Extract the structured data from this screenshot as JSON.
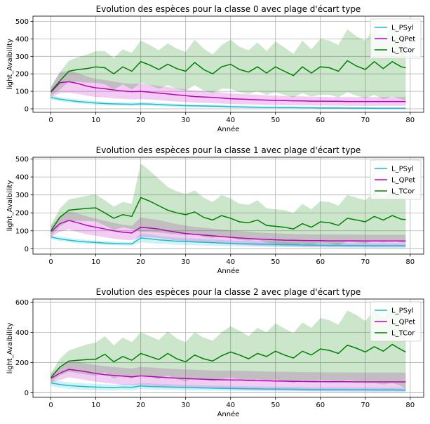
{
  "chart_data": [
    {
      "type": "line",
      "title": "Evolution des espèces pour la classe 0 avec plage d'écart type",
      "xlabel": "Année",
      "ylabel": "light_Avaibility",
      "xlim": [
        -4,
        83
      ],
      "ylim": [
        -20,
        530
      ],
      "xticks": [
        0,
        10,
        20,
        30,
        40,
        50,
        60,
        70,
        80
      ],
      "yticks": [
        0,
        100,
        200,
        300,
        400,
        500
      ],
      "grid": true,
      "legend": "top-right",
      "x": [
        0,
        2,
        4,
        6,
        8,
        10,
        12,
        14,
        16,
        18,
        20,
        22,
        24,
        26,
        28,
        30,
        32,
        34,
        36,
        38,
        40,
        42,
        44,
        46,
        48,
        50,
        52,
        54,
        56,
        58,
        60,
        62,
        64,
        66,
        68,
        70,
        72,
        74,
        76,
        78,
        79
      ],
      "series": [
        {
          "name": "L_PSyl",
          "color": "#17becf",
          "values": [
            65,
            55,
            48,
            42,
            38,
            33,
            30,
            28,
            27,
            26,
            28,
            27,
            24,
            22,
            20,
            18,
            17,
            16,
            15,
            14,
            12,
            11,
            10,
            9,
            8,
            8,
            7,
            7,
            6,
            6,
            5,
            5,
            5,
            4,
            4,
            4,
            3,
            3,
            3,
            3,
            3
          ],
          "std": [
            12,
            12,
            12,
            12,
            11,
            11,
            11,
            10,
            10,
            10,
            10,
            10,
            9,
            9,
            9,
            8,
            8,
            8,
            8,
            7,
            7,
            7,
            7,
            6,
            6,
            6,
            6,
            6,
            5,
            5,
            5,
            5,
            5,
            5,
            5,
            5,
            5,
            5,
            5,
            5,
            5
          ]
        },
        {
          "name": "L_QPet",
          "color": "#bf00bf",
          "values": [
            95,
            150,
            155,
            145,
            130,
            120,
            115,
            108,
            102,
            98,
            100,
            95,
            90,
            85,
            80,
            75,
            70,
            68,
            65,
            62,
            58,
            56,
            54,
            52,
            50,
            48,
            47,
            46,
            45,
            44,
            44,
            43,
            43,
            42,
            42,
            42,
            42,
            42,
            42,
            42,
            42
          ],
          "std": [
            30,
            60,
            62,
            60,
            55,
            52,
            50,
            48,
            45,
            45,
            45,
            42,
            40,
            40,
            38,
            36,
            35,
            34,
            33,
            32,
            30,
            30,
            29,
            28,
            28,
            27,
            27,
            26,
            26,
            25,
            25,
            25,
            25,
            25,
            25,
            25,
            25,
            25,
            25,
            25,
            25
          ]
        },
        {
          "name": "L_TCor",
          "color": "#008000",
          "values": [
            100,
            160,
            215,
            225,
            230,
            240,
            235,
            200,
            240,
            215,
            270,
            250,
            225,
            255,
            230,
            215,
            265,
            225,
            200,
            240,
            255,
            225,
            210,
            240,
            205,
            240,
            215,
            190,
            240,
            205,
            240,
            235,
            215,
            275,
            245,
            225,
            270,
            230,
            270,
            240,
            235
          ],
          "std": [
            25,
            50,
            60,
            70,
            80,
            90,
            95,
            90,
            100,
            105,
            120,
            115,
            110,
            120,
            115,
            110,
            130,
            120,
            110,
            125,
            140,
            130,
            125,
            140,
            125,
            145,
            135,
            125,
            150,
            135,
            160,
            155,
            150,
            180,
            170,
            165,
            190,
            175,
            200,
            185,
            185
          ]
        }
      ]
    },
    {
      "type": "line",
      "title": "Evolution des espèces pour la classe 1 avec plage d'écart type",
      "xlabel": "Année",
      "ylabel": "light_Avaibility",
      "xlim": [
        -4,
        83
      ],
      "ylim": [
        -30,
        510
      ],
      "xticks": [
        0,
        10,
        20,
        30,
        40,
        50,
        60,
        70,
        80
      ],
      "yticks": [
        0,
        100,
        200,
        300,
        400,
        500
      ],
      "grid": true,
      "legend": "top-right",
      "x": [
        0,
        2,
        4,
        6,
        8,
        10,
        12,
        14,
        16,
        18,
        20,
        22,
        24,
        26,
        28,
        30,
        32,
        34,
        36,
        38,
        40,
        42,
        44,
        46,
        48,
        50,
        52,
        54,
        56,
        58,
        60,
        62,
        64,
        66,
        68,
        70,
        72,
        74,
        76,
        78,
        79
      ],
      "series": [
        {
          "name": "L_PSyl",
          "color": "#17becf",
          "values": [
            65,
            55,
            48,
            42,
            38,
            35,
            32,
            30,
            28,
            27,
            60,
            55,
            50,
            46,
            42,
            40,
            38,
            36,
            34,
            32,
            30,
            28,
            27,
            26,
            25,
            24,
            23,
            22,
            21,
            20,
            20,
            19,
            19,
            18,
            18,
            18,
            17,
            17,
            17,
            17,
            17
          ],
          "std": [
            12,
            12,
            12,
            12,
            11,
            11,
            11,
            10,
            10,
            10,
            25,
            24,
            22,
            20,
            20,
            19,
            18,
            18,
            17,
            17,
            16,
            16,
            15,
            15,
            15,
            15,
            14,
            14,
            14,
            14,
            14,
            14,
            14,
            14,
            14,
            14,
            14,
            14,
            14,
            14,
            14
          ]
        },
        {
          "name": "L_QPet",
          "color": "#bf00bf",
          "values": [
            95,
            140,
            158,
            145,
            130,
            120,
            110,
            100,
            92,
            88,
            120,
            115,
            110,
            100,
            92,
            85,
            80,
            76,
            72,
            68,
            64,
            60,
            57,
            54,
            52,
            50,
            48,
            47,
            46,
            45,
            45,
            44,
            44,
            44,
            44,
            43,
            43,
            43,
            43,
            43,
            43
          ],
          "std": [
            30,
            45,
            50,
            52,
            50,
            48,
            46,
            44,
            42,
            40,
            55,
            52,
            50,
            48,
            46,
            44,
            42,
            41,
            40,
            40,
            39,
            38,
            38,
            37,
            36,
            36,
            36,
            35,
            35,
            35,
            35,
            35,
            35,
            35,
            35,
            35,
            35,
            35,
            35,
            35,
            35
          ]
        },
        {
          "name": "L_TCor",
          "color": "#008000",
          "values": [
            100,
            175,
            215,
            220,
            225,
            228,
            200,
            170,
            190,
            180,
            285,
            265,
            240,
            215,
            200,
            190,
            205,
            175,
            160,
            185,
            170,
            150,
            145,
            160,
            130,
            125,
            120,
            110,
            140,
            120,
            150,
            145,
            130,
            170,
            160,
            150,
            180,
            160,
            185,
            165,
            163
          ],
          "std": [
            30,
            50,
            60,
            65,
            70,
            75,
            70,
            65,
            70,
            70,
            190,
            170,
            150,
            130,
            120,
            115,
            120,
            110,
            100,
            115,
            110,
            100,
            100,
            110,
            95,
            95,
            95,
            90,
            110,
            100,
            115,
            115,
            110,
            130,
            125,
            120,
            135,
            125,
            140,
            130,
            130
          ]
        }
      ]
    },
    {
      "type": "line",
      "title": "Evolution des espèces pour la classe 2 avec plage d'écart type",
      "xlabel": "Année",
      "ylabel": "light_Avaibility",
      "xlim": [
        -4,
        83
      ],
      "ylim": [
        -30,
        620
      ],
      "xticks": [
        0,
        10,
        20,
        30,
        40,
        50,
        60,
        70,
        80
      ],
      "yticks": [
        0,
        200,
        400,
        600
      ],
      "grid": true,
      "legend": "top-right",
      "x": [
        0,
        2,
        4,
        6,
        8,
        10,
        12,
        14,
        16,
        18,
        20,
        22,
        24,
        26,
        28,
        30,
        32,
        34,
        36,
        38,
        40,
        42,
        44,
        46,
        48,
        50,
        52,
        54,
        56,
        58,
        60,
        62,
        64,
        66,
        68,
        70,
        72,
        74,
        76,
        78,
        79
      ],
      "series": [
        {
          "name": "L_PSyl",
          "color": "#17becf",
          "values": [
            65,
            55,
            48,
            44,
            40,
            38,
            36,
            34,
            38,
            36,
            45,
            42,
            40,
            38,
            36,
            34,
            33,
            32,
            31,
            30,
            29,
            28,
            27,
            26,
            25,
            25,
            24,
            24,
            23,
            22,
            22,
            21,
            21,
            20,
            20,
            20,
            19,
            19,
            19,
            18,
            18
          ],
          "std": [
            20,
            22,
            22,
            22,
            22,
            22,
            21,
            20,
            20,
            20,
            20,
            20,
            19,
            19,
            18,
            18,
            18,
            17,
            17,
            17,
            16,
            16,
            16,
            16,
            15,
            15,
            15,
            15,
            15,
            15,
            15,
            15,
            15,
            15,
            15,
            15,
            15,
            15,
            15,
            15,
            15
          ]
        },
        {
          "name": "L_QPet",
          "color": "#bf00bf",
          "values": [
            95,
            130,
            155,
            148,
            138,
            128,
            120,
            115,
            110,
            105,
            112,
            108,
            104,
            100,
            97,
            94,
            92,
            90,
            88,
            86,
            85,
            84,
            82,
            80,
            79,
            78,
            77,
            76,
            75,
            74,
            74,
            73,
            73,
            73,
            72,
            72,
            72,
            72,
            72,
            72,
            72
          ],
          "std": [
            30,
            45,
            52,
            55,
            55,
            55,
            55,
            55,
            55,
            55,
            60,
            60,
            60,
            60,
            60,
            60,
            60,
            60,
            60,
            60,
            62,
            62,
            62,
            62,
            62,
            62,
            62,
            62,
            62,
            62,
            62,
            62,
            62,
            62,
            62,
            62,
            62,
            62,
            62,
            62,
            62
          ]
        },
        {
          "name": "L_TCor",
          "color": "#008000",
          "values": [
            100,
            170,
            210,
            215,
            220,
            222,
            255,
            205,
            240,
            215,
            260,
            240,
            220,
            260,
            225,
            205,
            250,
            225,
            210,
            245,
            270,
            250,
            225,
            260,
            240,
            275,
            250,
            230,
            275,
            250,
            290,
            280,
            260,
            315,
            295,
            270,
            305,
            275,
            320,
            285,
            270
          ],
          "std": [
            30,
            55,
            70,
            85,
            100,
            110,
            120,
            110,
            125,
            120,
            140,
            135,
            130,
            145,
            135,
            130,
            150,
            140,
            135,
            155,
            170,
            160,
            150,
            170,
            160,
            185,
            175,
            165,
            190,
            180,
            205,
            200,
            190,
            230,
            220,
            205,
            240,
            220,
            255,
            240,
            240
          ]
        }
      ]
    }
  ]
}
